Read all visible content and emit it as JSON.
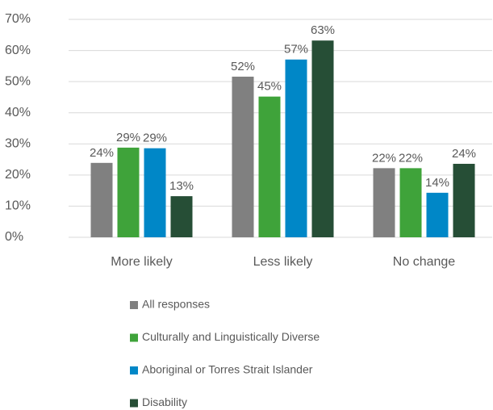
{
  "chart_data": {
    "type": "bar",
    "categories": [
      "More likely",
      "Less likely",
      "No change"
    ],
    "series": [
      {
        "name": "All responses",
        "color": "#808080",
        "values": [
          23.9,
          51.6,
          22.2
        ],
        "value_labels": [
          "24%",
          "52%",
          "22%"
        ]
      },
      {
        "name": "Culturally and Linguistically Diverse",
        "color": "#3fa33a",
        "values": [
          28.8,
          45.2,
          22.2
        ],
        "value_labels": [
          "29%",
          "45%",
          "22%"
        ]
      },
      {
        "name": "Aboriginal or Torres Strait Islander",
        "color": "#0087c7",
        "values": [
          28.6,
          57.1,
          14.3
        ],
        "value_labels": [
          "29%",
          "57%",
          "14%"
        ]
      },
      {
        "name": "Disability",
        "color": "#264e36",
        "values": [
          13.2,
          63.2,
          23.6
        ],
        "value_labels": [
          "13%",
          "63%",
          "24%"
        ]
      }
    ],
    "ylim": [
      0,
      70
    ],
    "yticks": [
      {
        "value": 0,
        "label": "0%"
      },
      {
        "value": 10,
        "label": "10%"
      },
      {
        "value": 20,
        "label": "20%"
      },
      {
        "value": 30,
        "label": "30%"
      },
      {
        "value": 40,
        "label": "40%"
      },
      {
        "value": 50,
        "label": "50%"
      },
      {
        "value": 60,
        "label": "60%"
      },
      {
        "value": 70,
        "label": "70%"
      }
    ],
    "grid": true,
    "legend": "bottom"
  }
}
